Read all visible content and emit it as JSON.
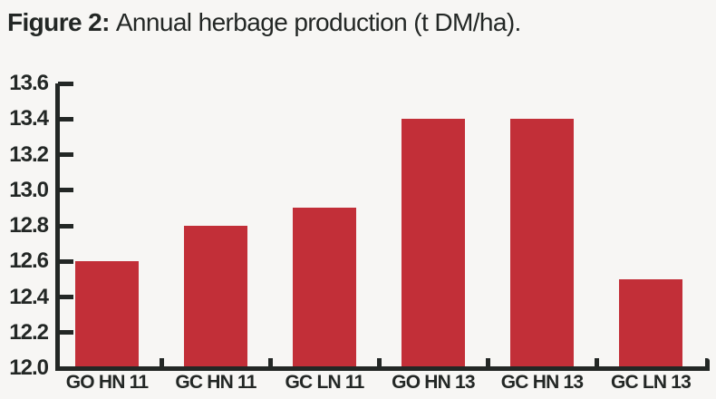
{
  "figure": {
    "label": "Figure 2:",
    "caption": "Annual herbage production (t DM/ha)."
  },
  "chart_data": {
    "type": "bar",
    "title": "Figure 2: Annual herbage production (t DM/ha).",
    "categories": [
      "GO HN 11",
      "GC HN 11",
      "GC LN 11",
      "GO HN 13",
      "GC HN 13",
      "GC LN 13"
    ],
    "values": [
      12.6,
      12.8,
      12.9,
      13.4,
      13.4,
      12.5
    ],
    "xlabel": "",
    "ylabel": "",
    "ylim": [
      12.0,
      13.6
    ],
    "ytick_step": 0.2,
    "ytick_labels": [
      "13.6",
      "13.4",
      "13.2",
      "13.0",
      "12.8",
      "12.6",
      "12.4",
      "12.2",
      "12.0"
    ],
    "grid": false,
    "legend": false,
    "bar_color": "#c22f38",
    "axis_color": "#232725",
    "background_color": "#f7f6f4"
  }
}
